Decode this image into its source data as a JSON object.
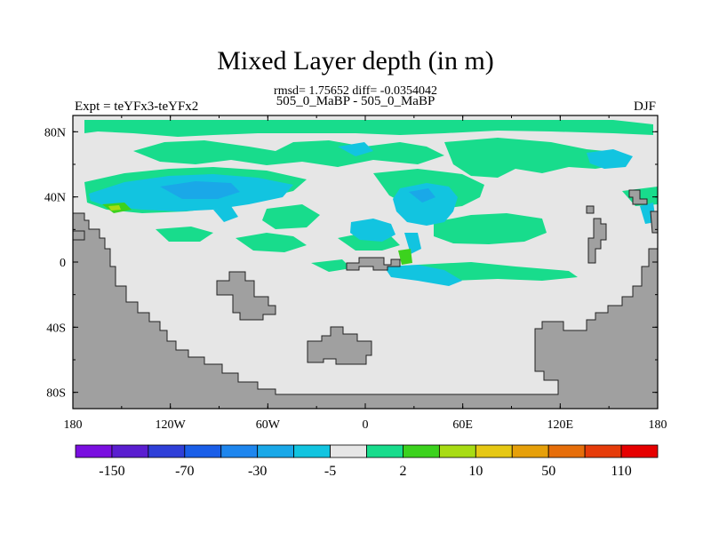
{
  "chart_data": {
    "type": "heatmap",
    "title": "Mixed Layer depth (in m)",
    "stats_line": "rmsd= 1.75652 diff= -0.0354042",
    "subtitle": "505_0_MaBP - 505_0_MaBP",
    "left_label": "Expt = teYFx3-teYFx2",
    "right_label": "DJF",
    "x_ticks": [
      "180",
      "120W",
      "60W",
      "0",
      "60E",
      "120E",
      "180"
    ],
    "x_range": [
      -180,
      180
    ],
    "y_ticks": [
      "80N",
      "40N",
      "0",
      "40S",
      "80S"
    ],
    "y_range": [
      -90,
      90
    ],
    "colorbar": {
      "colors": [
        "#7a0fe0",
        "#5a1ed0",
        "#2f3fd8",
        "#1a5ee8",
        "#1e86ee",
        "#1aa8e8",
        "#12c4e0",
        "#e6e6e6",
        "#18dc8c",
        "#3cd21e",
        "#a8dc14",
        "#e6c814",
        "#e6a00a",
        "#e66e0a",
        "#e63c0a",
        "#e60000"
      ],
      "labels": [
        "-150",
        "-70",
        "-30",
        "-5",
        "2",
        "10",
        "50",
        "110"
      ]
    },
    "colors": {
      "background": "#e6e6e6",
      "land": "#a0a0a0",
      "positive_small": "#18dc8c",
      "positive_medium": "#3cd21e",
      "positive_large": "#a8dc14",
      "negative_small": "#12c4e0",
      "negative_medium": "#1aa8e8",
      "negative_large": "#1e86ee"
    }
  }
}
